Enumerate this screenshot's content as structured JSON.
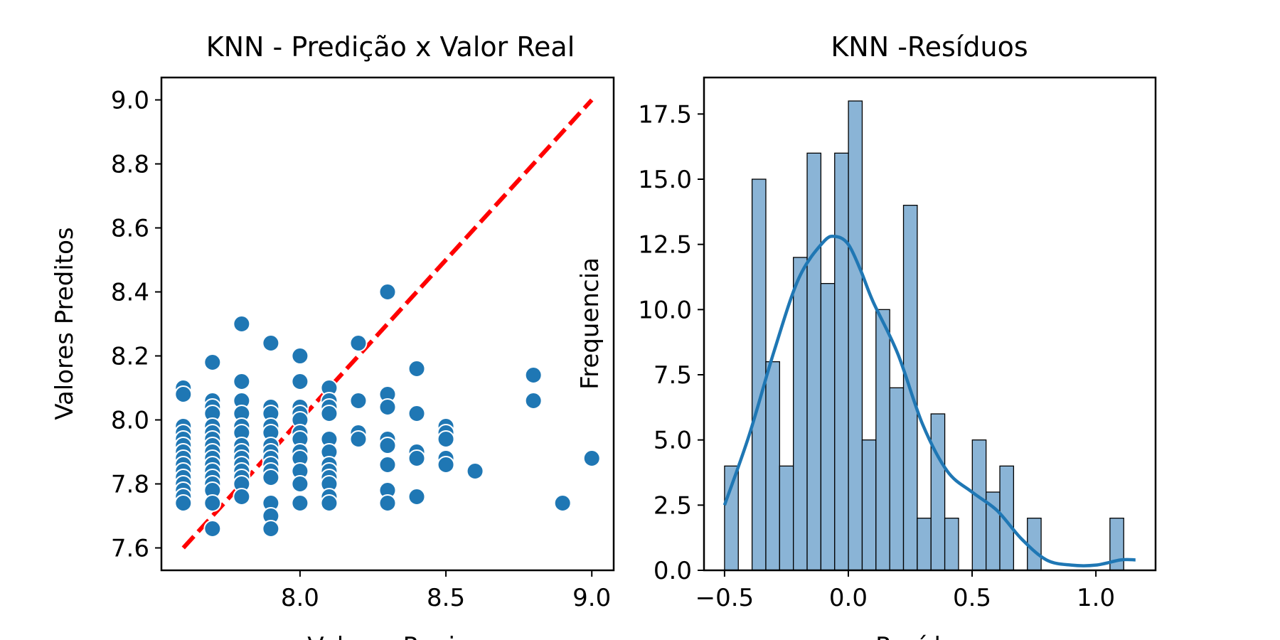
{
  "chart_data": [
    {
      "type": "scatter",
      "title": "KNN - Predição x Valor Real",
      "xlabel": "Valores Reais",
      "ylabel": "Valores Preditos",
      "xlim": [
        7.525,
        9.075
      ],
      "ylim": [
        7.53,
        9.07
      ],
      "xticks": [
        8.0,
        8.5,
        9.0
      ],
      "xtick_labels": [
        "8.0",
        "8.5",
        "9.0"
      ],
      "yticks": [
        7.6,
        7.8,
        8.0,
        8.2,
        8.4,
        8.6,
        8.8,
        9.0
      ],
      "ytick_labels": [
        "7.6",
        "7.8",
        "8.0",
        "8.2",
        "8.4",
        "8.6",
        "8.8",
        "9.0"
      ],
      "grid": false,
      "point_color": "#1f77b4",
      "reference_line": {
        "from": [
          7.6,
          7.6
        ],
        "to": [
          9.0,
          9.0
        ],
        "color": "#ff0000",
        "style": "dashed"
      },
      "points": [
        [
          7.6,
          8.1
        ],
        [
          7.6,
          8.08
        ],
        [
          7.6,
          7.98
        ],
        [
          7.6,
          7.96
        ],
        [
          7.6,
          7.94
        ],
        [
          7.6,
          7.92
        ],
        [
          7.6,
          7.9
        ],
        [
          7.6,
          7.88
        ],
        [
          7.6,
          7.86
        ],
        [
          7.6,
          7.84
        ],
        [
          7.6,
          7.82
        ],
        [
          7.6,
          7.8
        ],
        [
          7.6,
          7.78
        ],
        [
          7.6,
          7.76
        ],
        [
          7.6,
          7.74
        ],
        [
          7.7,
          8.18
        ],
        [
          7.7,
          8.06
        ],
        [
          7.7,
          8.04
        ],
        [
          7.7,
          8.02
        ],
        [
          7.7,
          7.98
        ],
        [
          7.7,
          7.96
        ],
        [
          7.7,
          7.94
        ],
        [
          7.7,
          7.92
        ],
        [
          7.7,
          7.9
        ],
        [
          7.7,
          7.88
        ],
        [
          7.7,
          7.86
        ],
        [
          7.7,
          7.84
        ],
        [
          7.7,
          7.82
        ],
        [
          7.7,
          7.8
        ],
        [
          7.7,
          7.78
        ],
        [
          7.7,
          7.74
        ],
        [
          7.7,
          7.66
        ],
        [
          7.8,
          8.3
        ],
        [
          7.8,
          8.12
        ],
        [
          7.8,
          8.06
        ],
        [
          7.8,
          8.02
        ],
        [
          7.8,
          7.98
        ],
        [
          7.8,
          7.96
        ],
        [
          7.8,
          7.92
        ],
        [
          7.8,
          7.9
        ],
        [
          7.8,
          7.88
        ],
        [
          7.8,
          7.86
        ],
        [
          7.8,
          7.84
        ],
        [
          7.8,
          7.82
        ],
        [
          7.8,
          7.8
        ],
        [
          7.8,
          7.76
        ],
        [
          7.9,
          8.24
        ],
        [
          7.9,
          8.04
        ],
        [
          7.9,
          8.02
        ],
        [
          7.9,
          7.98
        ],
        [
          7.9,
          7.96
        ],
        [
          7.9,
          7.92
        ],
        [
          7.9,
          7.9
        ],
        [
          7.9,
          7.88
        ],
        [
          7.9,
          7.86
        ],
        [
          7.9,
          7.84
        ],
        [
          7.9,
          7.82
        ],
        [
          7.9,
          7.74
        ],
        [
          7.9,
          7.7
        ],
        [
          7.9,
          7.66
        ],
        [
          8.0,
          8.2
        ],
        [
          8.0,
          8.12
        ],
        [
          8.0,
          8.04
        ],
        [
          8.0,
          8.02
        ],
        [
          8.0,
          8.0
        ],
        [
          8.0,
          7.96
        ],
        [
          8.0,
          7.94
        ],
        [
          8.0,
          7.9
        ],
        [
          8.0,
          7.88
        ],
        [
          8.0,
          7.84
        ],
        [
          8.0,
          7.8
        ],
        [
          8.0,
          7.74
        ],
        [
          8.1,
          8.1
        ],
        [
          8.1,
          8.06
        ],
        [
          8.1,
          8.04
        ],
        [
          8.1,
          8.02
        ],
        [
          8.1,
          7.94
        ],
        [
          8.1,
          7.9
        ],
        [
          8.1,
          7.86
        ],
        [
          8.1,
          7.84
        ],
        [
          8.1,
          7.82
        ],
        [
          8.1,
          7.8
        ],
        [
          8.1,
          7.76
        ],
        [
          8.1,
          7.74
        ],
        [
          8.2,
          8.24
        ],
        [
          8.2,
          8.06
        ],
        [
          8.2,
          7.96
        ],
        [
          8.2,
          7.94
        ],
        [
          8.3,
          8.4
        ],
        [
          8.3,
          8.08
        ],
        [
          8.3,
          8.04
        ],
        [
          8.3,
          7.94
        ],
        [
          8.3,
          7.92
        ],
        [
          8.3,
          7.86
        ],
        [
          8.3,
          7.78
        ],
        [
          8.3,
          7.74
        ],
        [
          8.4,
          8.16
        ],
        [
          8.4,
          8.02
        ],
        [
          8.4,
          7.9
        ],
        [
          8.4,
          7.88
        ],
        [
          8.4,
          7.76
        ],
        [
          8.5,
          7.98
        ],
        [
          8.5,
          7.96
        ],
        [
          8.5,
          7.94
        ],
        [
          8.5,
          7.88
        ],
        [
          8.5,
          7.86
        ],
        [
          8.6,
          7.84
        ],
        [
          8.8,
          8.14
        ],
        [
          8.8,
          8.06
        ],
        [
          8.9,
          7.74
        ],
        [
          9.0,
          7.88
        ]
      ]
    },
    {
      "type": "bar",
      "title": "KNN -Resíduos",
      "xlabel": "Resíduos",
      "ylabel": "Frequencia",
      "xlim": [
        -0.583,
        1.241
      ],
      "ylim": [
        0,
        18.9
      ],
      "xticks": [
        -0.5,
        0.0,
        0.5,
        1.0
      ],
      "xtick_labels": [
        "−0.5",
        "0.0",
        "0.5",
        "1.0"
      ],
      "yticks": [
        0.0,
        2.5,
        5.0,
        7.5,
        10.0,
        12.5,
        15.0,
        17.5
      ],
      "ytick_labels": [
        "0.0",
        "2.5",
        "5.0",
        "7.5",
        "10.0",
        "12.5",
        "15.0",
        "17.5"
      ],
      "grid": false,
      "bin_start": -0.5,
      "bin_width": 0.0556,
      "bar_color": "#8ab4d6",
      "line_color": "#1f77b4",
      "counts": [
        4,
        0,
        15,
        8,
        4,
        12,
        16,
        11,
        16,
        18,
        5,
        10,
        7,
        14,
        2,
        6,
        2,
        0,
        5,
        3,
        4,
        0,
        2,
        0,
        0,
        0,
        0,
        0,
        2
      ],
      "kde": {
        "x": [
          -0.5,
          -0.4,
          -0.3,
          -0.2,
          -0.1,
          -0.05,
          0.0,
          0.05,
          0.1,
          0.2,
          0.3,
          0.4,
          0.5,
          0.6,
          0.7,
          0.8,
          0.9,
          1.0,
          1.1,
          1.16
        ],
        "y": [
          2.5,
          5.2,
          8.4,
          11.2,
          12.6,
          12.8,
          12.5,
          11.5,
          10.3,
          8.3,
          5.6,
          3.8,
          3.0,
          2.3,
          1.2,
          0.4,
          0.2,
          0.2,
          0.4,
          0.4
        ]
      }
    }
  ]
}
